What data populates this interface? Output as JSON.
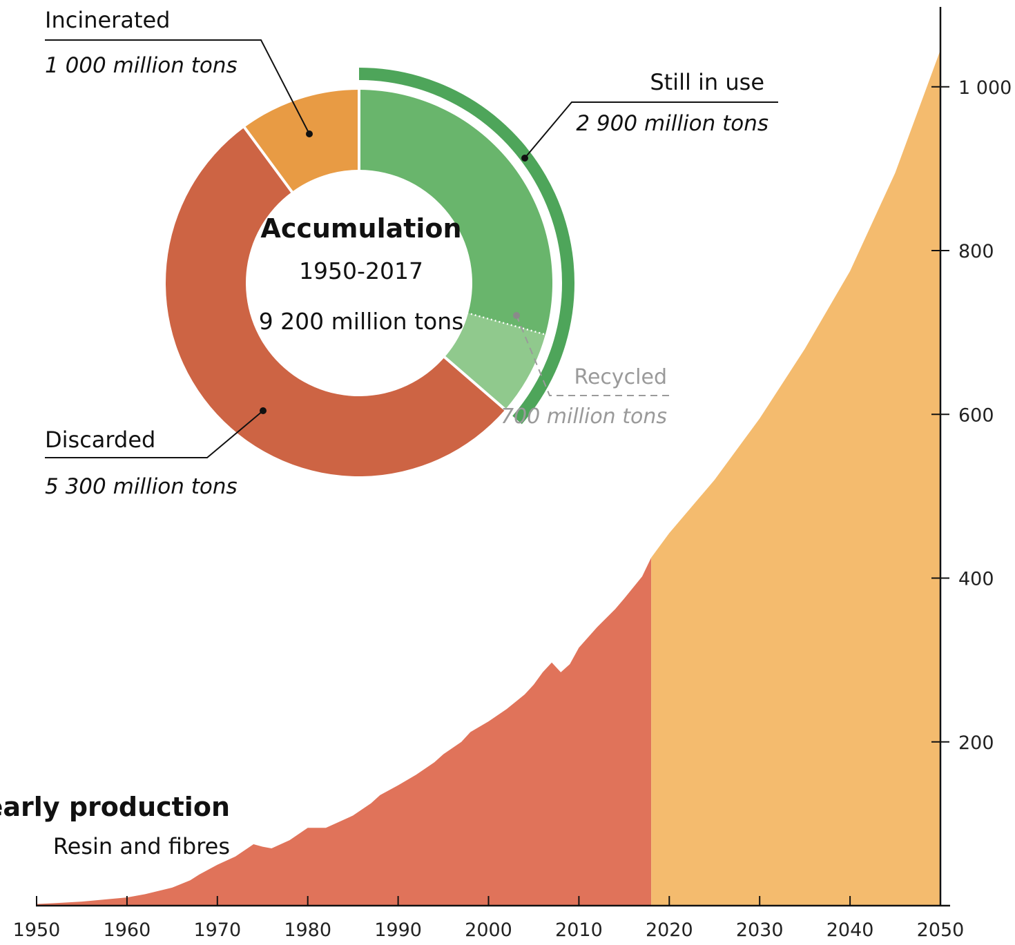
{
  "chart_data": [
    {
      "type": "area",
      "title": "Yearly production",
      "subtitle": "Resin and fibres",
      "xlim": [
        1950,
        2050
      ],
      "ylim": [
        0,
        1100
      ],
      "x_ticks": [
        1950,
        1960,
        1970,
        1980,
        1990,
        2000,
        2010,
        2020,
        2030,
        2040,
        2050
      ],
      "y_ticks": [
        {
          "value": 200,
          "label": "200"
        },
        {
          "value": 400,
          "label": "400"
        },
        {
          "value": 600,
          "label": "600"
        },
        {
          "value": 800,
          "label": "800"
        },
        {
          "value": 1000,
          "label": "1 000"
        }
      ],
      "y_axis_side": "right",
      "series": [
        {
          "color": "#e0735a",
          "x": [
            1950,
            1952,
            1955,
            1958,
            1960,
            1962,
            1965,
            1967,
            1968,
            1970,
            1972,
            1974,
            1975,
            1976,
            1978,
            1980,
            1982,
            1983,
            1985,
            1987,
            1988,
            1990,
            1992,
            1994,
            1995,
            1997,
            1998,
            2000,
            2002,
            2004,
            2005,
            2006,
            2007,
            2008,
            2009,
            2010,
            2012,
            2014,
            2015,
            2017,
            2018
          ],
          "values": [
            2,
            3,
            5,
            8,
            10,
            14,
            22,
            31,
            38,
            50,
            60,
            75,
            72,
            70,
            80,
            95,
            95,
            100,
            110,
            125,
            135,
            147,
            160,
            175,
            185,
            200,
            212,
            225,
            240,
            258,
            270,
            285,
            297,
            285,
            295,
            315,
            340,
            362,
            375,
            402,
            425
          ]
        },
        {
          "color": "#f4bb6e",
          "x": [
            2018,
            2020,
            2025,
            2030,
            2035,
            2040,
            2045,
            2050
          ],
          "values": [
            425,
            455,
            520,
            595,
            680,
            775,
            895,
            1045
          ]
        }
      ],
      "grid": false
    },
    {
      "type": "pie",
      "title": "Accumulation",
      "subtitle_years": "1950-2017",
      "total_label": "9 200 million tons",
      "slices": [
        {
          "name": "Still in use",
          "value": 2900,
          "value_label": "2 900 million tons",
          "color": "#69b56c"
        },
        {
          "name": "Recycled",
          "value": 700,
          "value_label": "700 million tons",
          "color": "#90c98d"
        },
        {
          "name": "Discarded",
          "value": 5300,
          "value_label": "5 300  million tons",
          "color": "#cd6444"
        },
        {
          "name": "Incinerated",
          "value": 1000,
          "value_label": "1 000 million tons",
          "color": "#e89b44"
        }
      ],
      "outer_arc_color": "#4ea55a"
    }
  ]
}
